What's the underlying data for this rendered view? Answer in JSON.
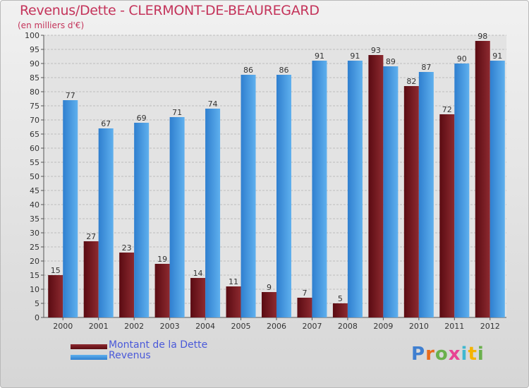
{
  "header": {
    "title": "Revenus/Dette - CLERMONT-DE-BEAUREGARD",
    "subtitle": "(en milliers d'€)"
  },
  "colors": {
    "dette": "#7b1a1f",
    "revenus": "#3f93dd",
    "title": "#c4335a",
    "legend_text": "#4a59d9"
  },
  "logo": {
    "text": "Proxiti",
    "letters": [
      {
        "ch": "P",
        "color": "#3f7fd0"
      },
      {
        "ch": "r",
        "color": "#e86b1c"
      },
      {
        "ch": "o",
        "color": "#6ab04c"
      },
      {
        "ch": "x",
        "color": "#e84393"
      },
      {
        "ch": "i",
        "color": "#3fb8d0"
      },
      {
        "ch": "t",
        "color": "#f4b400"
      },
      {
        "ch": "i",
        "color": "#6ab04c"
      }
    ]
  },
  "chart_data": {
    "type": "bar",
    "categories": [
      "2000",
      "2001",
      "2002",
      "2003",
      "2004",
      "2005",
      "2006",
      "2007",
      "2008",
      "2009",
      "2010",
      "2011",
      "2012"
    ],
    "series": [
      {
        "name": "Montant de la Dette",
        "color": "#7b1a1f",
        "values": [
          15,
          27,
          23,
          19,
          14,
          11,
          9,
          7,
          5,
          93,
          82,
          72,
          98
        ]
      },
      {
        "name": "Revenus",
        "color": "#3f93dd",
        "values": [
          77,
          67,
          69,
          71,
          74,
          86,
          86,
          91,
          91,
          89,
          87,
          90,
          91
        ]
      }
    ],
    "ylim": [
      0,
      100
    ],
    "yticks": [
      0,
      5,
      10,
      15,
      20,
      25,
      30,
      35,
      40,
      45,
      50,
      55,
      60,
      65,
      70,
      75,
      80,
      85,
      90,
      95,
      100
    ],
    "grid": true,
    "legend": "bottom-left",
    "data_labels": true
  }
}
